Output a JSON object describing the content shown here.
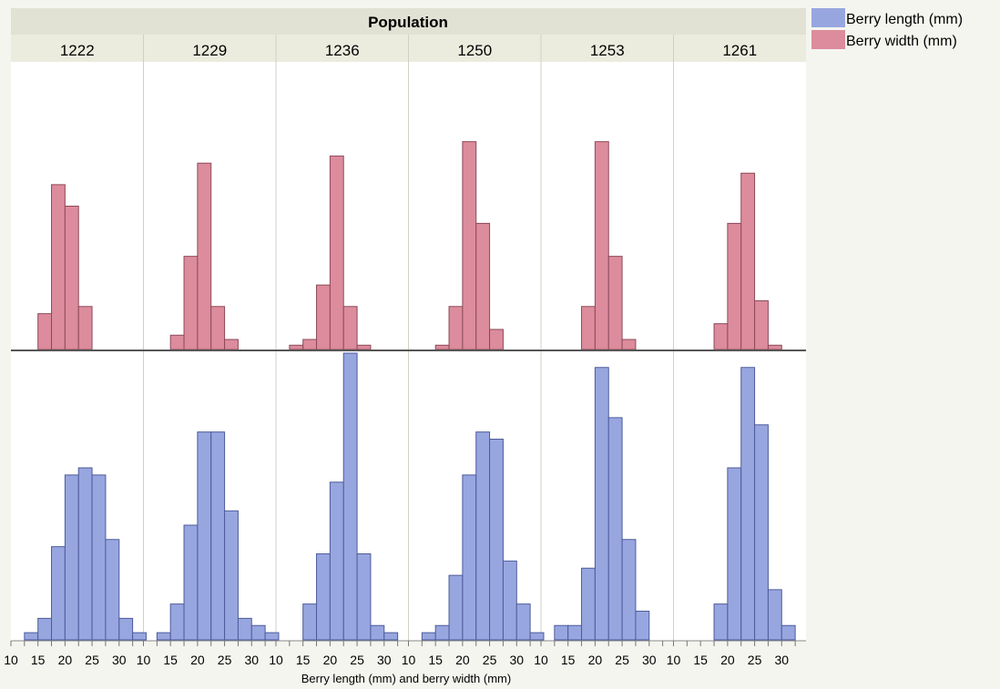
{
  "chart_data": {
    "type": "bar",
    "title": "Population",
    "xlabel": "Berry length (mm) and berry width (mm)",
    "panels": [
      "1222",
      "1229",
      "1236",
      "1250",
      "1253",
      "1261"
    ],
    "x_ticks": [
      "10",
      "15",
      "20",
      "25",
      "30"
    ],
    "xlim": [
      10,
      34.5
    ],
    "bin_edges": [
      12.5,
      15,
      17.5,
      20,
      22.5,
      25,
      27.5,
      30,
      32.5
    ],
    "grid": false,
    "legend_position": "right",
    "series": [
      {
        "name": "Berry length (mm)",
        "color": "#98a6e0",
        "row": "bottom",
        "values": [
          [
            0.5,
            1.5,
            6.5,
            11.5,
            12,
            11.5,
            7.0,
            1.5,
            0.5
          ],
          [
            0.5,
            2.5,
            8.0,
            14.5,
            14.5,
            9.0,
            1.5,
            1.0,
            0.5
          ],
          [
            0.0,
            2.5,
            6.0,
            11.0,
            20.0,
            6.0,
            1.0,
            0.5,
            0.0
          ],
          [
            0.5,
            1.0,
            4.5,
            11.5,
            14.5,
            14.0,
            5.5,
            2.5,
            0.5
          ],
          [
            1.0,
            1.0,
            5.0,
            19.0,
            15.5,
            7.0,
            2.0,
            0.0,
            0.0
          ],
          [
            0.0,
            0.0,
            2.5,
            12.0,
            19.0,
            15.0,
            3.5,
            1.0,
            0.0
          ]
        ]
      },
      {
        "name": "Berry width (mm)",
        "color": "#dc8c9c",
        "row": "top",
        "values": [
          [
            0,
            2.5,
            11.5,
            10.0,
            3.0,
            0,
            0,
            0,
            0
          ],
          [
            0,
            1.0,
            6.5,
            13.0,
            3.0,
            0.7,
            0,
            0,
            0
          ],
          [
            0.3,
            0.7,
            4.5,
            13.5,
            3.0,
            0.3,
            0,
            0,
            0
          ],
          [
            0,
            0.3,
            3.0,
            14.5,
            8.8,
            1.4,
            0,
            0,
            0
          ],
          [
            0,
            0,
            3.0,
            14.5,
            6.5,
            0.7,
            0,
            0,
            0
          ],
          [
            0,
            0,
            1.8,
            8.8,
            12.3,
            3.4,
            0.3,
            0,
            0
          ]
        ]
      }
    ]
  }
}
